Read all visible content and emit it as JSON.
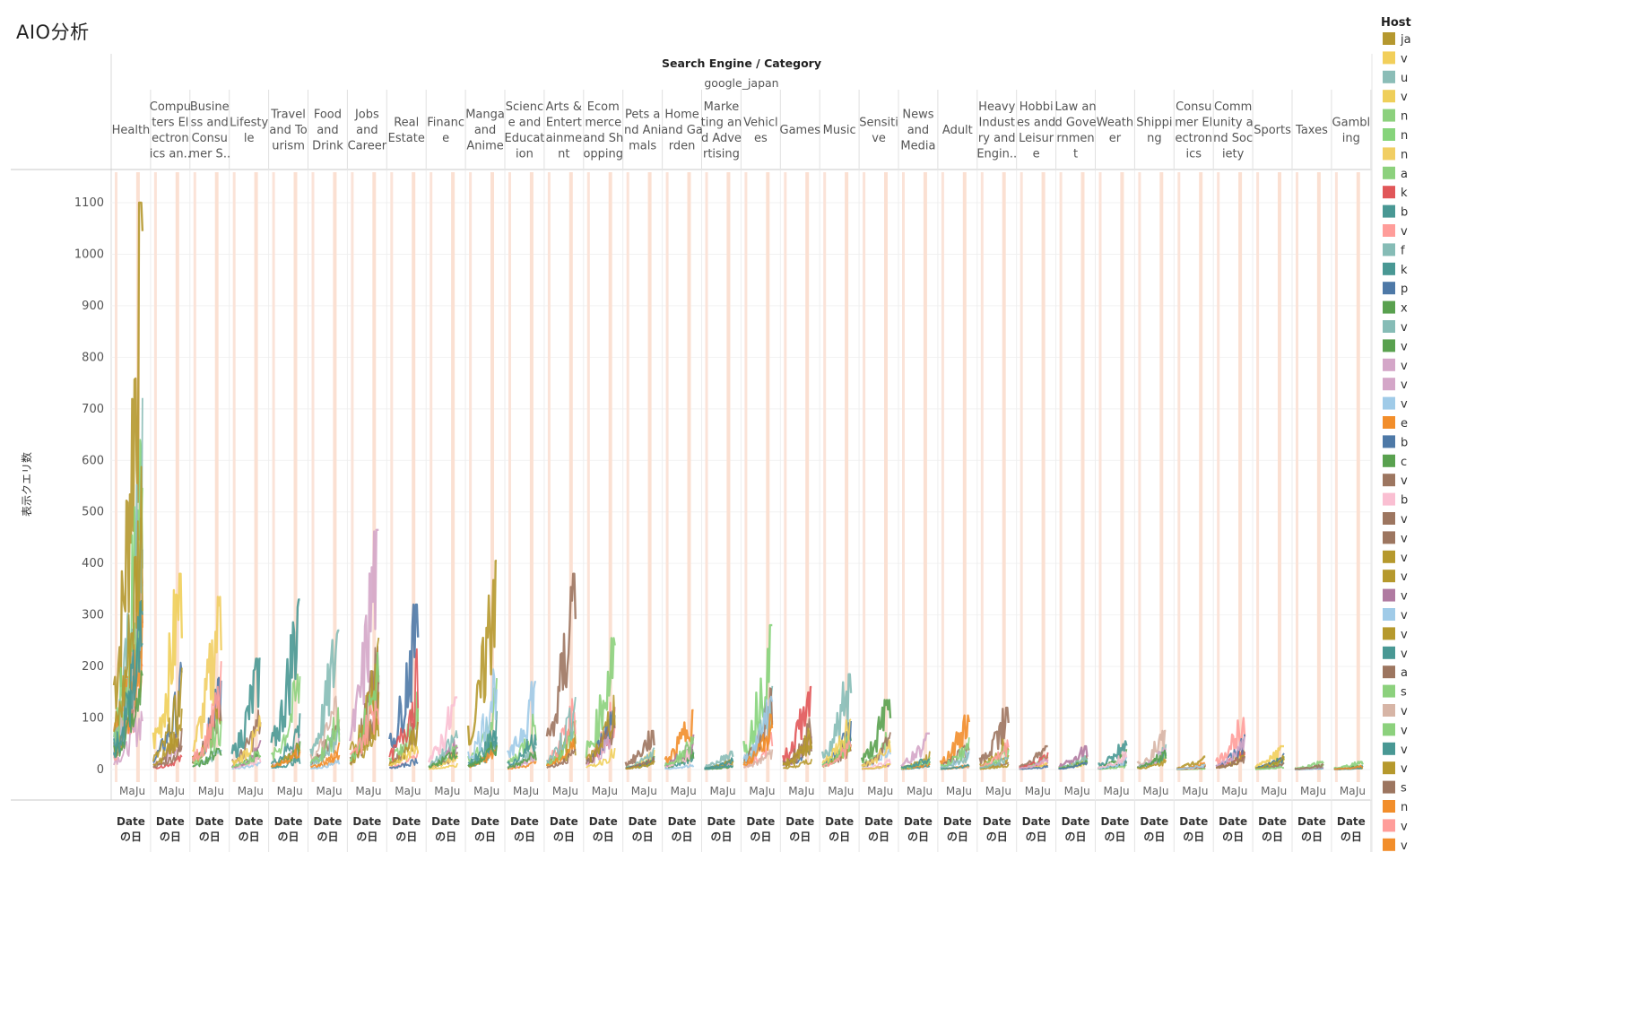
{
  "title": "AIO分析",
  "legend": {
    "title": "Host",
    "items": [
      {
        "label": "ja",
        "color": "#b5982f"
      },
      {
        "label": "v",
        "color": "#f2cf5b"
      },
      {
        "label": "u",
        "color": "#8bbdb7"
      },
      {
        "label": "v",
        "color": "#efcf5a"
      },
      {
        "label": "n",
        "color": "#8cd17d"
      },
      {
        "label": "n",
        "color": "#86d47b"
      },
      {
        "label": "n",
        "color": "#f1ce63"
      },
      {
        "label": "a",
        "color": "#8cd17d"
      },
      {
        "label": "k",
        "color": "#e15759"
      },
      {
        "label": "b",
        "color": "#499894"
      },
      {
        "label": "v",
        "color": "#ff9d9a"
      },
      {
        "label": "f",
        "color": "#86bcb6"
      },
      {
        "label": "k",
        "color": "#499894"
      },
      {
        "label": "p",
        "color": "#4e79a7"
      },
      {
        "label": "x",
        "color": "#59a14f"
      },
      {
        "label": "v",
        "color": "#86bcb6"
      },
      {
        "label": "v",
        "color": "#59a14f"
      },
      {
        "label": "v",
        "color": "#d4a6c8"
      },
      {
        "label": "v",
        "color": "#d4a6c8"
      },
      {
        "label": "v",
        "color": "#a0cbe8"
      },
      {
        "label": "e",
        "color": "#f28e2b"
      },
      {
        "label": "b",
        "color": "#4e79a7"
      },
      {
        "label": "c",
        "color": "#59a14f"
      },
      {
        "label": "v",
        "color": "#9d7660"
      },
      {
        "label": "b",
        "color": "#fabfd2"
      },
      {
        "label": "v",
        "color": "#9d7660"
      },
      {
        "label": "v",
        "color": "#9d7660"
      },
      {
        "label": "v",
        "color": "#b6992d"
      },
      {
        "label": "v",
        "color": "#b6992d"
      },
      {
        "label": "v",
        "color": "#b07aa1"
      },
      {
        "label": "v",
        "color": "#a0cbe8"
      },
      {
        "label": "v",
        "color": "#b6992d"
      },
      {
        "label": "v",
        "color": "#499894"
      },
      {
        "label": "a",
        "color": "#9d7660"
      },
      {
        "label": "s",
        "color": "#8cd17d"
      },
      {
        "label": "v",
        "color": "#d7b5a6"
      },
      {
        "label": "v",
        "color": "#8cd17d"
      },
      {
        "label": "v",
        "color": "#499894"
      },
      {
        "label": "v",
        "color": "#b6992d"
      },
      {
        "label": "s",
        "color": "#9d7660"
      },
      {
        "label": "n",
        "color": "#f28e2b"
      },
      {
        "label": "v",
        "color": "#ff9d9a"
      },
      {
        "label": "v",
        "color": "#f28e2b"
      }
    ]
  },
  "chart_data": {
    "type": "line",
    "column_header": "Search Engine",
    "row_header": "Category",
    "search_engine": "google_japan",
    "ylabel": "表示クエリ数",
    "ylim": [
      0,
      1150
    ],
    "yticks": [
      0,
      100,
      200,
      300,
      400,
      500,
      600,
      700,
      800,
      900,
      1000,
      1100
    ],
    "xtick_labels": [
      "Ma",
      "Ju"
    ],
    "xlabel_line1": "Date",
    "xlabel_line2": "の日",
    "categories": [
      {
        "label": [
          "Health"
        ],
        "peak": 1100
      },
      {
        "label": [
          "Compu",
          "ters El",
          "ectron",
          "ics an.."
        ],
        "peak": 380
      },
      {
        "label": [
          "Busine",
          "ss and",
          "Consu",
          "mer S.."
        ],
        "peak": 335
      },
      {
        "label": [
          "Lifesty",
          "le"
        ],
        "peak": 215
      },
      {
        "label": [
          "Travel",
          "and To",
          "urism"
        ],
        "peak": 330
      },
      {
        "label": [
          "Food",
          "and",
          "Drink"
        ],
        "peak": 270
      },
      {
        "label": [
          "Jobs",
          "and",
          "Career"
        ],
        "peak": 465
      },
      {
        "label": [
          "Real",
          "Estate"
        ],
        "peak": 320
      },
      {
        "label": [
          "Financ",
          "e"
        ],
        "peak": 140
      },
      {
        "label": [
          "Manga",
          "and",
          "Anime"
        ],
        "peak": 405
      },
      {
        "label": [
          "Scienc",
          "e and",
          "Educat",
          "ion"
        ],
        "peak": 170
      },
      {
        "label": [
          "Arts &",
          "Entert",
          "ainme",
          "nt"
        ],
        "peak": 380
      },
      {
        "label": [
          "Ecom",
          "merce",
          "and Sh",
          "opping"
        ],
        "peak": 255
      },
      {
        "label": [
          "Pets a",
          "nd Ani",
          "mals"
        ],
        "peak": 75
      },
      {
        "label": [
          "Home",
          "and Ga",
          "rden"
        ],
        "peak": 115
      },
      {
        "label": [
          "Marke",
          "ting an",
          "d Adve",
          "rtising"
        ],
        "peak": 35
      },
      {
        "label": [
          "Vehicl",
          "es"
        ],
        "peak": 280
      },
      {
        "label": [
          "Games"
        ],
        "peak": 160
      },
      {
        "label": [
          "Music"
        ],
        "peak": 185
      },
      {
        "label": [
          "Sensiti",
          "ve"
        ],
        "peak": 135
      },
      {
        "label": [
          "News",
          "and",
          "Media"
        ],
        "peak": 70
      },
      {
        "label": [
          "Adult"
        ],
        "peak": 105
      },
      {
        "label": [
          "Heavy",
          "Indust",
          "ry and",
          "Engin.."
        ],
        "peak": 120
      },
      {
        "label": [
          "Hobbi",
          "es and",
          "Leisur",
          "e"
        ],
        "peak": 45
      },
      {
        "label": [
          "Law an",
          "d Gove",
          "rnmen",
          "t"
        ],
        "peak": 45
      },
      {
        "label": [
          "Weath",
          "er"
        ],
        "peak": 55
      },
      {
        "label": [
          "Shippi",
          "ng"
        ],
        "peak": 75
      },
      {
        "label": [
          "Consu",
          "mer El",
          "ectron",
          "ics"
        ],
        "peak": 25
      },
      {
        "label": [
          "Comm",
          "unity a",
          "nd Soc",
          "iety"
        ],
        "peak": 100
      },
      {
        "label": [
          "Sports"
        ],
        "peak": 45
      },
      {
        "label": [
          "Taxes"
        ],
        "peak": 15
      },
      {
        "label": [
          "Gambl",
          "ing"
        ],
        "peak": 15
      }
    ]
  }
}
